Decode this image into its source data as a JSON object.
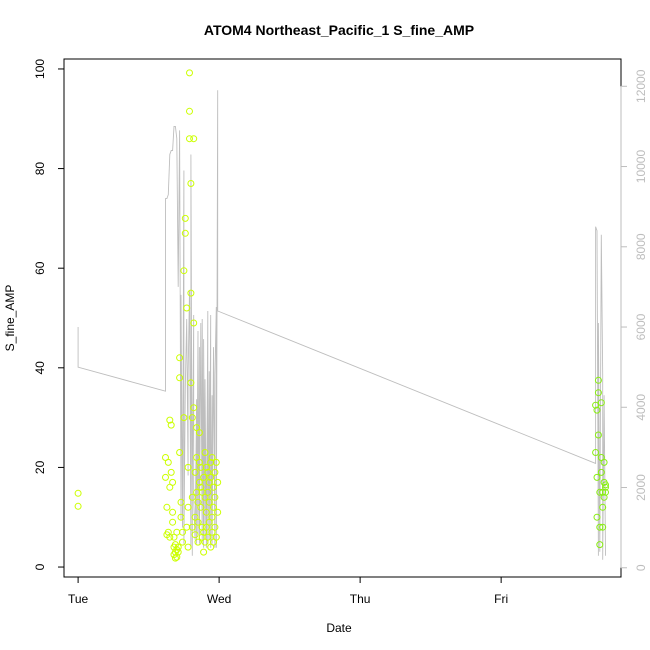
{
  "chart_data": {
    "type": "scatter",
    "title": "ATOM4 Northeast_Pacific_1 S_fine_AMP",
    "xlabel": "Date",
    "ylabel": "S_fine_AMP",
    "x_ticks": [
      "Tue",
      "Wed",
      "Thu",
      "Fri"
    ],
    "x_range_days": [
      -0.1,
      3.85
    ],
    "ylim": [
      -2,
      102
    ],
    "y_ticks": [
      0,
      20,
      40,
      60,
      80,
      100
    ],
    "y2lim": [
      -230,
      12680
    ],
    "y2_ticks": [
      0,
      2000,
      4000,
      6000,
      8000,
      10000,
      12000
    ],
    "grid": false,
    "legend": "none",
    "colors": {
      "points_early": "#ccff00",
      "points_late": "#88ee11",
      "line": "#bebebe"
    },
    "series": [
      {
        "type": "points",
        "x": [
          0.0,
          0.0,
          0.62,
          0.62,
          0.63,
          0.63,
          0.64,
          0.64,
          0.65,
          0.65,
          0.65,
          0.66,
          0.66,
          0.67,
          0.67,
          0.67,
          0.68,
          0.68,
          0.68,
          0.69,
          0.69,
          0.69,
          0.7,
          0.7,
          0.7,
          0.71,
          0.71,
          0.72,
          0.72,
          0.72,
          0.73,
          0.73,
          0.74,
          0.74,
          0.75,
          0.75,
          0.76,
          0.76,
          0.77,
          0.77,
          0.78,
          0.78,
          0.78,
          0.79,
          0.79,
          0.79,
          0.8,
          0.8,
          0.8,
          0.81,
          0.81,
          0.81,
          0.82,
          0.82,
          0.82,
          0.83,
          0.83,
          0.83,
          0.84,
          0.84,
          0.84,
          0.85,
          0.85,
          0.85,
          0.86,
          0.86,
          0.86,
          0.87,
          0.87,
          0.87,
          0.88,
          0.88,
          0.88,
          0.89,
          0.89,
          0.89,
          0.9,
          0.9,
          0.9,
          0.91,
          0.91,
          0.91,
          0.92,
          0.92,
          0.92,
          0.93,
          0.93,
          0.93,
          0.94,
          0.94,
          0.94,
          0.95,
          0.95,
          0.95,
          0.96,
          0.96,
          0.96,
          0.97,
          0.97,
          0.97,
          0.98,
          0.98,
          0.99,
          0.99,
          3.67,
          3.67,
          3.68,
          3.68,
          3.68,
          3.69,
          3.69,
          3.69,
          3.7,
          3.7,
          3.7,
          3.71,
          3.71,
          3.71,
          3.72,
          3.72,
          3.72,
          3.73,
          3.73,
          3.73,
          3.74,
          3.74,
          3.74
        ],
        "y": [
          14.8,
          12.2,
          22.0,
          18.0,
          6.5,
          12.0,
          21.0,
          7.0,
          29.5,
          16.0,
          6.0,
          28.5,
          19.0,
          9.0,
          17.0,
          11.0,
          6.0,
          4.0,
          2.5,
          3.0,
          1.8,
          4.5,
          3.5,
          2.0,
          7.0,
          4.0,
          3.0,
          42.0,
          38.0,
          23.0,
          13.0,
          10.0,
          7.0,
          5.0,
          30.0,
          59.5,
          70.0,
          67.0,
          52.0,
          8.0,
          20.0,
          12.0,
          4.0,
          91.5,
          99.2,
          86.0,
          77.0,
          55.0,
          37.0,
          8.0,
          14.0,
          30.0,
          86.0,
          49.0,
          32.0,
          19.0,
          10.0,
          6.5,
          28.0,
          22.0,
          15.0,
          13.0,
          9.0,
          5.0,
          27.0,
          21.0,
          17.0,
          20.0,
          16.0,
          12.0,
          6.0,
          8.0,
          15.0,
          3.0,
          18.0,
          7.0,
          23.0,
          14.0,
          5.0,
          8.0,
          20.0,
          11.0,
          6.0,
          15.0,
          19.0,
          17.0,
          9.0,
          13.0,
          21.0,
          4.0,
          18.0,
          7.0,
          10.0,
          22.0,
          16.0,
          5.0,
          12.0,
          19.0,
          8.0,
          14.0,
          6.0,
          21.0,
          17.0,
          11.0,
          32.5,
          23.0,
          31.5,
          18.0,
          10.0,
          37.5,
          35.0,
          26.5,
          15.0,
          8.0,
          4.5,
          33.0,
          22.0,
          19.0,
          15.0,
          12.0,
          8.0,
          21.0,
          17.0,
          14.0,
          16.0,
          15.0,
          16.5
        ]
      },
      {
        "type": "line",
        "axis": "right",
        "x": [
          0.0,
          0.0,
          0.0,
          0.62,
          0.62,
          0.63,
          0.64,
          0.64,
          0.65,
          0.66,
          0.67,
          0.68,
          0.69,
          0.7,
          0.71,
          0.72,
          0.73,
          0.73,
          0.74,
          0.75,
          0.75,
          0.76,
          0.77,
          0.78,
          0.78,
          0.79,
          0.8,
          0.8,
          0.81,
          0.81,
          0.82,
          0.82,
          0.83,
          0.84,
          0.84,
          0.85,
          0.85,
          0.86,
          0.86,
          0.87,
          0.88,
          0.88,
          0.89,
          0.89,
          0.9,
          0.9,
          0.91,
          0.92,
          0.92,
          0.93,
          0.93,
          0.94,
          0.94,
          0.95,
          0.95,
          0.96,
          0.97,
          0.97,
          0.98,
          0.98,
          0.99,
          0.99,
          0.99,
          0.99,
          3.67,
          3.67,
          3.68,
          3.69,
          3.69,
          3.7,
          3.71,
          3.72,
          3.72,
          3.73,
          3.74
        ],
        "y": [
          6000,
          6000,
          5000,
          4400,
          9200,
          9200,
          9300,
          9300,
          10300,
          10400,
          10400,
          11000,
          11000,
          10700,
          7000,
          10900,
          1200,
          6800,
          1000,
          9900,
          600,
          4500,
          6200,
          2300,
          4800,
          6900,
          500,
          10300,
          300,
          2000,
          6300,
          1700,
          700,
          4200,
          600,
          5900,
          800,
          5500,
          600,
          6100,
          700,
          6200,
          500,
          5700,
          800,
          4700,
          500,
          6400,
          600,
          4900,
          700,
          6300,
          500,
          4300,
          600,
          5500,
          500,
          4800,
          6500,
          500,
          11900,
          11800,
          6500,
          6400,
          2600,
          8500,
          8400,
          300,
          6100,
          400,
          8300,
          4800,
          200,
          4300,
          300
        ]
      }
    ]
  }
}
